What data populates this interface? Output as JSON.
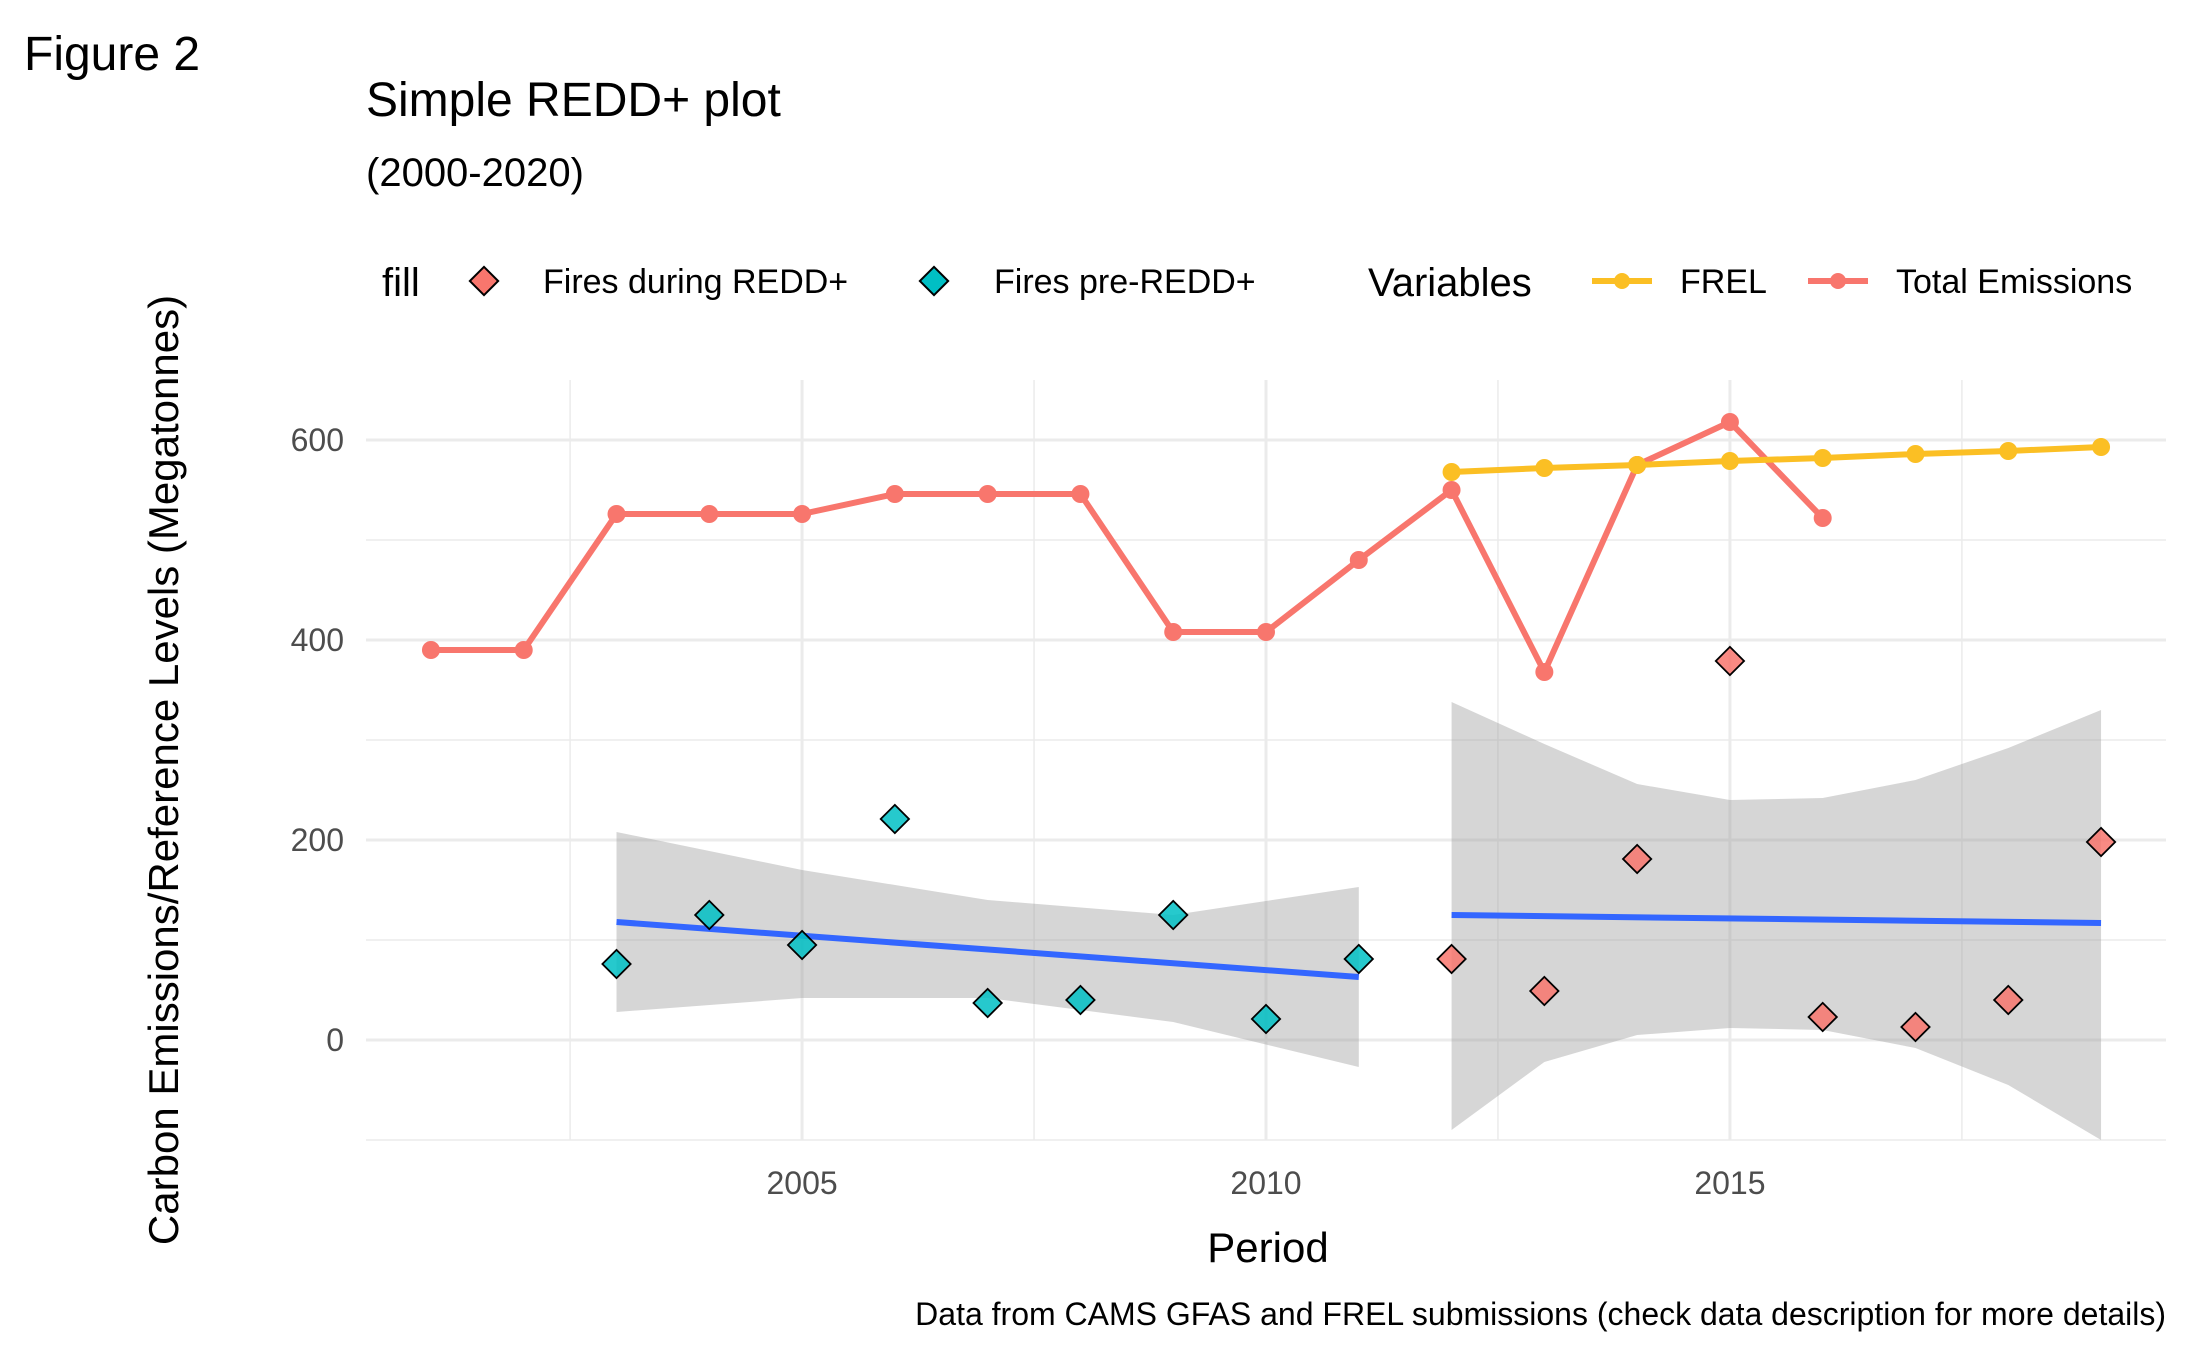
{
  "figure_label": "Figure 2",
  "chart_data": {
    "type": "line",
    "title": "Simple REDD+ plot",
    "subtitle": "(2000-2020)",
    "xlabel": "Period",
    "ylabel": "Carbon Emissions/Reference Levels (Megatonnes)",
    "caption": "Data from CAMS GFAS and FREL submissions (check data description for more details)",
    "xlim": [
      2000.3,
      2019.7
    ],
    "ylim": [
      -100,
      660
    ],
    "x_ticks": [
      2005,
      2010,
      2015
    ],
    "x_minor_ticks": [
      2002.5,
      2007.5,
      2012.5,
      2017.5
    ],
    "y_ticks": [
      0,
      200,
      400,
      600
    ],
    "y_minor_ticks": [
      -100,
      100,
      300,
      500
    ],
    "grid": true,
    "legend_position": "top",
    "legend": {
      "fill_title": "fill",
      "fill_entries": [
        {
          "label": "Fires during REDD+",
          "color": "#F8766D"
        },
        {
          "label": "Fires pre-REDD+",
          "color": "#00BFC4"
        }
      ],
      "line_title": "Variables",
      "line_entries": [
        {
          "label": "FREL",
          "color": "#FBBF24"
        },
        {
          "label": "Total Emissions",
          "color": "#F8766D"
        }
      ]
    },
    "series": [
      {
        "name": "Total Emissions",
        "kind": "line",
        "color": "#F8766D",
        "x": [
          2001,
          2002,
          2003,
          2004,
          2005,
          2006,
          2007,
          2008,
          2009,
          2010,
          2011,
          2012,
          2013,
          2014,
          2015,
          2016
        ],
        "y": [
          390,
          390,
          526,
          526,
          526,
          546,
          546,
          546,
          408,
          408,
          480,
          550,
          368,
          575,
          618,
          522
        ]
      },
      {
        "name": "FREL",
        "kind": "line",
        "color": "#FBBF24",
        "x": [
          2012,
          2013,
          2014,
          2015,
          2016,
          2017,
          2018,
          2019
        ],
        "y": [
          568,
          572,
          575,
          579,
          582,
          586,
          589,
          593
        ]
      },
      {
        "name": "Fires pre-REDD+",
        "kind": "scatter",
        "color": "#00BFC4",
        "x": [
          2003,
          2004,
          2005,
          2006,
          2007,
          2008,
          2009,
          2010,
          2011
        ],
        "y": [
          76,
          125,
          95,
          221,
          37,
          40,
          125,
          21,
          81
        ]
      },
      {
        "name": "Fires during REDD+",
        "kind": "scatter",
        "color": "#F8766D",
        "x": [
          2012,
          2013,
          2014,
          2015,
          2016,
          2017,
          2018,
          2019
        ],
        "y": [
          81,
          49,
          181,
          379,
          23,
          13,
          40,
          198
        ]
      }
    ],
    "trend_lines": [
      {
        "kind": "smooth",
        "color": "#3366FF",
        "x": [
          2003,
          2011
        ],
        "y": [
          118,
          63
        ],
        "ci_lower": [
          [
            2003,
            28
          ],
          [
            2005,
            42
          ],
          [
            2007,
            42
          ],
          [
            2009,
            18
          ],
          [
            2011,
            -27
          ]
        ],
        "ci_upper": [
          [
            2003,
            208
          ],
          [
            2005,
            170
          ],
          [
            2007,
            140
          ],
          [
            2009,
            125
          ],
          [
            2011,
            153
          ]
        ]
      },
      {
        "kind": "smooth",
        "color": "#3366FF",
        "x": [
          2012,
          2019
        ],
        "y": [
          125,
          117
        ],
        "ci_lower": [
          [
            2012,
            -90
          ],
          [
            2013,
            -22
          ],
          [
            2014,
            5
          ],
          [
            2015,
            12
          ],
          [
            2016,
            10
          ],
          [
            2017,
            -8
          ],
          [
            2018,
            -45
          ],
          [
            2019,
            -100
          ]
        ],
        "ci_upper": [
          [
            2012,
            338
          ],
          [
            2013,
            296
          ],
          [
            2014,
            256
          ],
          [
            2015,
            240
          ],
          [
            2016,
            242
          ],
          [
            2017,
            260
          ],
          [
            2018,
            292
          ],
          [
            2019,
            330
          ]
        ]
      }
    ]
  }
}
